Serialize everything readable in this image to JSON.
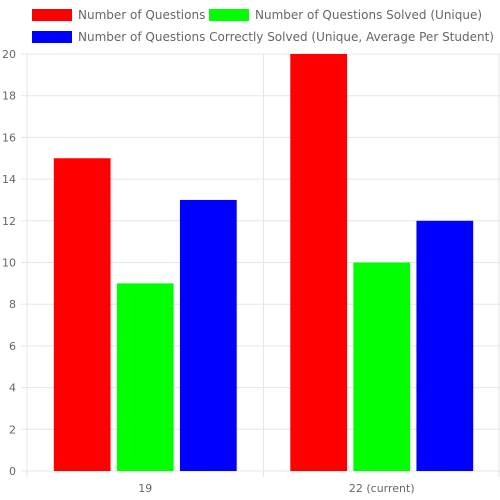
{
  "chart_data": {
    "type": "bar",
    "categories": [
      "19",
      "22 (current)"
    ],
    "series": [
      {
        "name": "Number of Questions",
        "values": [
          15,
          20
        ],
        "color": "#ff0000"
      },
      {
        "name": "Number of Questions Solved (Unique)",
        "values": [
          9,
          10
        ],
        "color": "#00ff00"
      },
      {
        "name": "Number of Questions Correctly Solved (Unique, Average Per Student)",
        "values": [
          13,
          12
        ],
        "color": "#0000ff"
      }
    ],
    "y_ticks": [
      "0",
      "2",
      "4",
      "6",
      "8",
      "10",
      "12",
      "14",
      "16",
      "18",
      "20"
    ],
    "ylim": [
      0,
      20
    ],
    "grid": true,
    "legend_position": "top"
  }
}
